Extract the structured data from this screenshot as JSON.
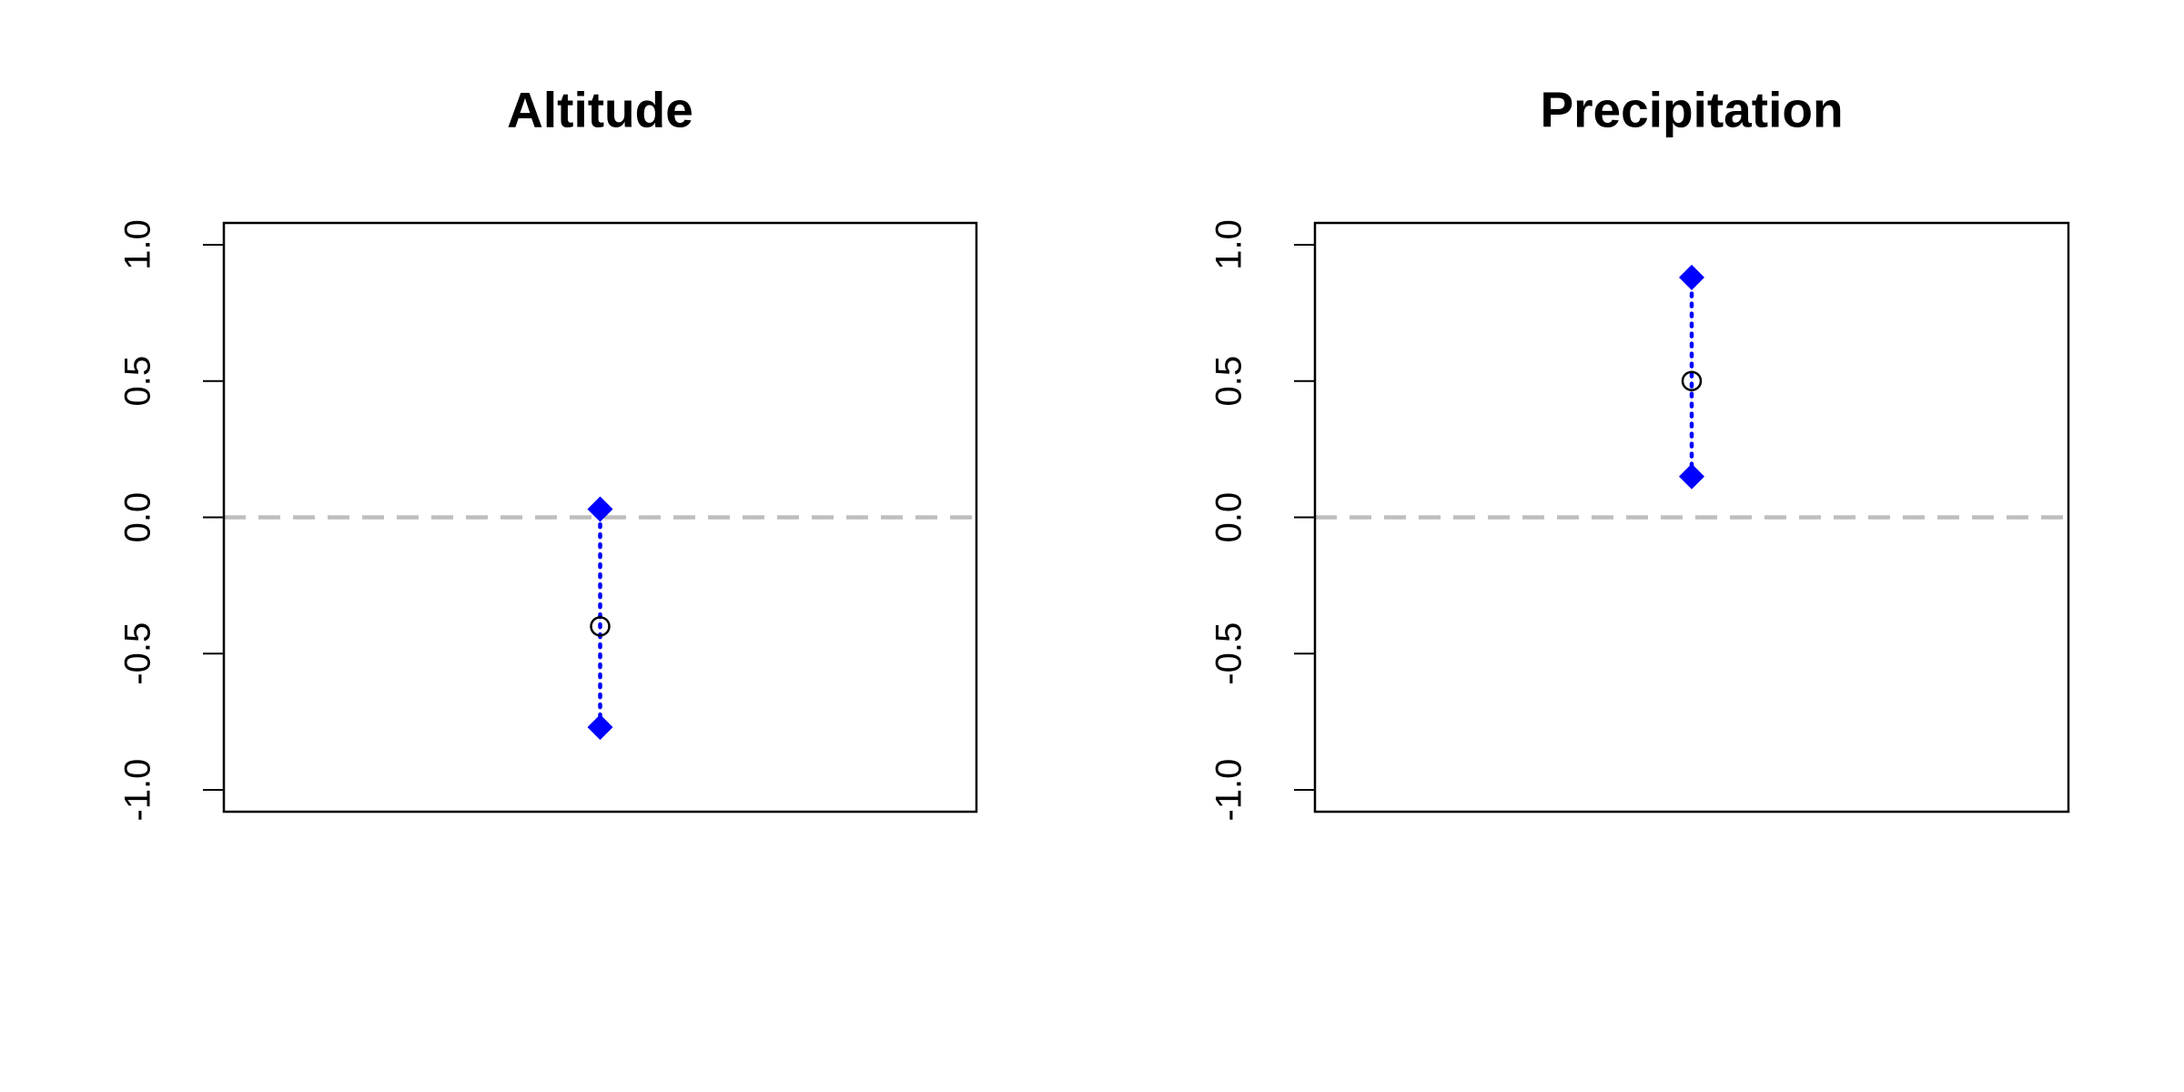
{
  "chart_data": [
    {
      "type": "interval",
      "title": "Altitude",
      "estimate": -0.4,
      "lower": -0.77,
      "upper": 0.03,
      "ylim": [
        -1.08,
        1.08
      ],
      "yticks": [
        {
          "value": -1,
          "label": "-1.0"
        },
        {
          "value": -0.5,
          "label": "-0.5"
        },
        {
          "value": 0,
          "label": "0.0"
        },
        {
          "value": 0.5,
          "label": "0.5"
        },
        {
          "value": 1,
          "label": "1.0"
        }
      ],
      "hline": 0,
      "hline_color": "#bebebe",
      "interval_color": "#0000ff",
      "estimate_color": "#000000"
    },
    {
      "type": "interval",
      "title": "Precipitation",
      "estimate": 0.5,
      "lower": 0.15,
      "upper": 0.88,
      "ylim": [
        -1.08,
        1.08
      ],
      "yticks": [
        {
          "value": -1,
          "label": "-1.0"
        },
        {
          "value": -0.5,
          "label": "-0.5"
        },
        {
          "value": 0,
          "label": "0.0"
        },
        {
          "value": 0.5,
          "label": "0.5"
        },
        {
          "value": 1,
          "label": "1.0"
        }
      ],
      "hline": 0,
      "hline_color": "#bebebe",
      "interval_color": "#0000ff",
      "estimate_color": "#000000"
    }
  ]
}
